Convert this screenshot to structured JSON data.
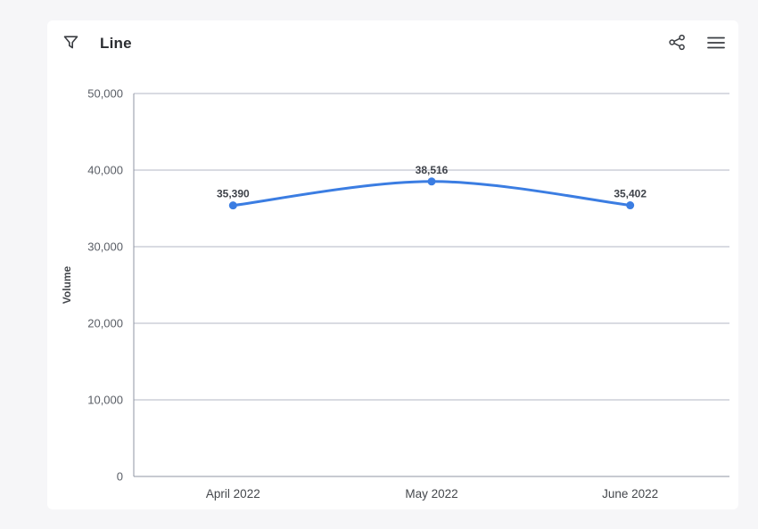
{
  "page": {
    "background": "#f6f6f8",
    "card_background": "#ffffff"
  },
  "header": {
    "title": "Line",
    "filter_icon": "filter-funnel",
    "share_icon": "share-network",
    "menu_icon": "hamburger-menu"
  },
  "chart_data": {
    "type": "line",
    "title": "Line",
    "categories": [
      "April 2022",
      "May 2022",
      "June 2022"
    ],
    "series": [
      {
        "name": "Volume",
        "values": [
          35390,
          38516,
          35402
        ]
      }
    ],
    "data_labels": [
      "35,390",
      "38,516",
      "35,402"
    ],
    "xlabel": "",
    "ylabel": "Volume",
    "ylim": [
      0,
      50000
    ],
    "ytick_interval": 10000,
    "ytick_labels": [
      "0",
      "10,000",
      "20,000",
      "30,000",
      "40,000",
      "50,000"
    ],
    "grid": true,
    "legend_position": "none",
    "colors": {
      "line": "#3b7de2",
      "point": "#3b7de2",
      "grid": "#b3b7c4",
      "axis": "#8f95a3",
      "tick_text": "#5a5e66",
      "category_text": "#44474c",
      "data_label_text": "#3f434a",
      "axis_title_text": "#45484d",
      "icon": "#3a3d42"
    }
  }
}
